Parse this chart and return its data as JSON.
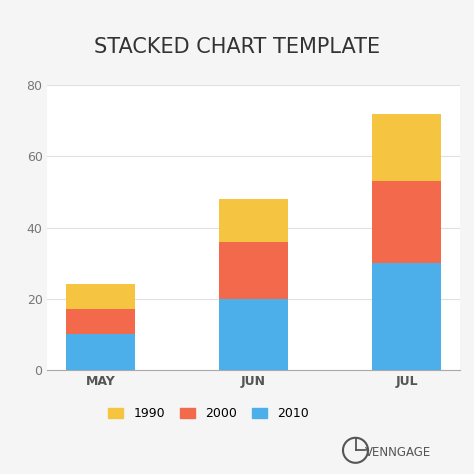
{
  "categories": [
    "MAY",
    "JUN",
    "JUL"
  ],
  "series": {
    "2010": [
      10,
      20,
      30
    ],
    "2000": [
      7,
      16,
      23
    ],
    "1990": [
      7,
      12,
      19
    ]
  },
  "colors": {
    "2010": "#4DAFEA",
    "2000": "#F26A4B",
    "1990": "#F5C542"
  },
  "title": "STACKED CHART TEMPLATE",
  "ylim": [
    0,
    80
  ],
  "yticks": [
    0,
    20,
    40,
    60,
    80
  ],
  "legend_order": [
    "1990",
    "2000",
    "2010"
  ],
  "background_outer": "#f5f5f5",
  "background_chart": "#ffffff",
  "background_title": "#ffffff",
  "title_fontsize": 15,
  "axis_label_fontsize": 9,
  "legend_fontsize": 9,
  "bar_width": 0.45,
  "venngage_text": "VENNGAGE"
}
